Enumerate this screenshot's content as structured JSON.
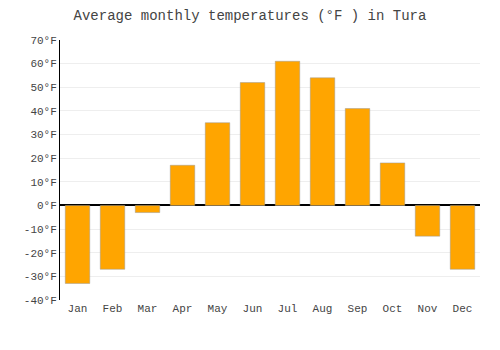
{
  "chart_data": {
    "type": "bar",
    "title": "Average monthly temperatures (°F ) in Tura",
    "categories": [
      "Jan",
      "Feb",
      "Mar",
      "Apr",
      "May",
      "Jun",
      "Jul",
      "Aug",
      "Sep",
      "Oct",
      "Nov",
      "Dec"
    ],
    "values": [
      -33,
      -27,
      -3,
      17,
      35,
      52,
      61,
      54,
      41,
      18,
      -13,
      -27
    ],
    "color": "#FFA500",
    "ylim": [
      -40,
      70
    ],
    "yticks": [
      {
        "value": -40,
        "label": "-40°F"
      },
      {
        "value": -30,
        "label": "-30°F"
      },
      {
        "value": -20,
        "label": "-20°F"
      },
      {
        "value": -10,
        "label": "-10°F"
      },
      {
        "value": 0,
        "label": "0°F"
      },
      {
        "value": 10,
        "label": "10°F"
      },
      {
        "value": 20,
        "label": "20°F"
      },
      {
        "value": 30,
        "label": "30°F"
      },
      {
        "value": 40,
        "label": "40°F"
      },
      {
        "value": 50,
        "label": "50°F"
      },
      {
        "value": 60,
        "label": "60°F"
      },
      {
        "value": 70,
        "label": "70°F"
      }
    ],
    "grid": true
  }
}
